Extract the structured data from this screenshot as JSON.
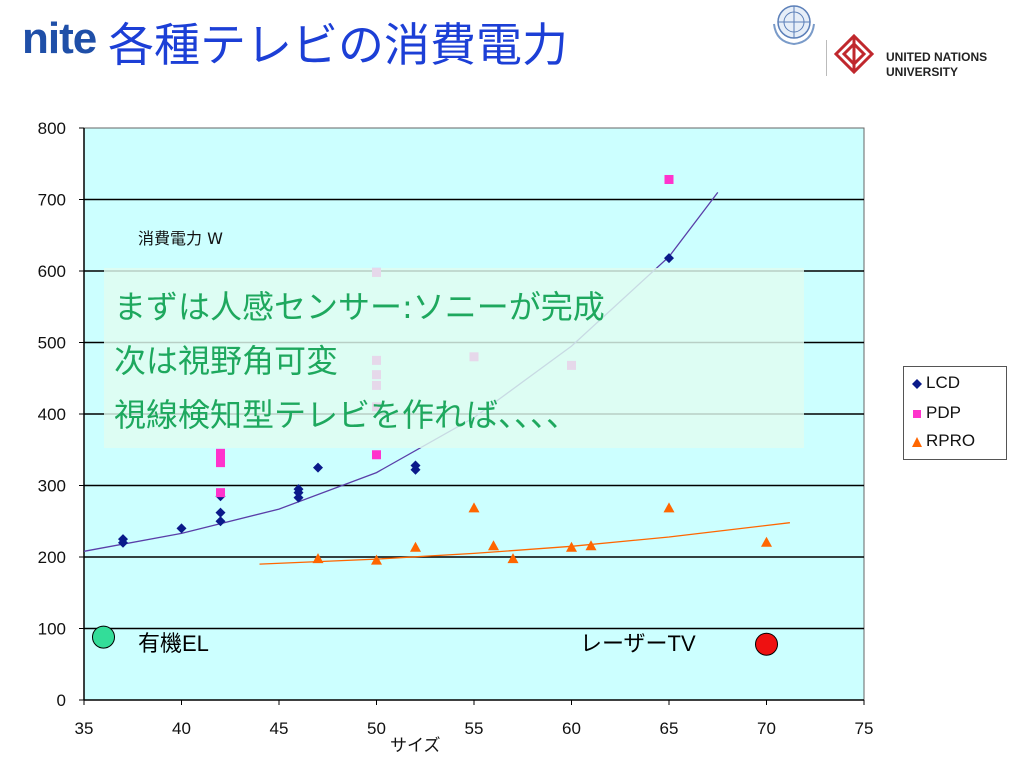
{
  "header": {
    "logo_text": "nite",
    "title": "各種テレビの消費電力",
    "un_emblem": "un-emblem-icon",
    "unu_name_line1": "UNITED NATIONS",
    "unu_name_line2": "UNIVERSITY"
  },
  "overlay": {
    "lines": [
      "まずは人感センサー:ソニーが完成",
      "次は視野角可変",
      "視線検知型テレビを作れば、、、、"
    ]
  },
  "colors": {
    "plot_bg": "#ccffff",
    "lcd": "#0a1a8a",
    "pdp": "#ff33cc",
    "rpro": "#ff6600",
    "title": "#1c3fd6",
    "overlay_text": "#1ea85e",
    "oled_marker": "#33dd99",
    "laser_marker": "#ee1111"
  },
  "chart_data": {
    "type": "scatter",
    "ylabel": "消費電力 W",
    "xlabel": "サイズ",
    "xlim": [
      35,
      75
    ],
    "ylim": [
      0,
      800
    ],
    "x_ticks": [
      35,
      40,
      45,
      50,
      55,
      60,
      65,
      70,
      75
    ],
    "y_ticks": [
      0,
      100,
      200,
      300,
      400,
      500,
      600,
      700,
      800
    ],
    "grid": "horizontal",
    "legend_position": "right",
    "series": [
      {
        "name": "LCD",
        "marker": "diamond",
        "points": [
          [
            37,
            225
          ],
          [
            37,
            220
          ],
          [
            40,
            240
          ],
          [
            42,
            285
          ],
          [
            42,
            262
          ],
          [
            42,
            250
          ],
          [
            46,
            295
          ],
          [
            46,
            290
          ],
          [
            46,
            283
          ],
          [
            47,
            325
          ],
          [
            52,
            328
          ],
          [
            52,
            322
          ],
          [
            65,
            618
          ]
        ]
      },
      {
        "name": "PDP",
        "marker": "square",
        "points": [
          [
            42,
            345
          ],
          [
            42,
            338
          ],
          [
            42,
            332
          ],
          [
            42,
            290
          ],
          [
            50,
            598
          ],
          [
            50,
            475
          ],
          [
            50,
            455
          ],
          [
            50,
            440
          ],
          [
            50,
            410
          ],
          [
            50,
            343
          ],
          [
            55,
            480
          ],
          [
            60,
            468
          ],
          [
            65,
            728
          ]
        ]
      },
      {
        "name": "RPRO",
        "marker": "triangle",
        "points": [
          [
            47,
            197
          ],
          [
            50,
            195
          ],
          [
            52,
            213
          ],
          [
            55,
            268
          ],
          [
            56,
            215
          ],
          [
            57,
            197
          ],
          [
            60,
            213
          ],
          [
            61,
            215
          ],
          [
            65,
            268
          ],
          [
            70,
            220
          ]
        ]
      }
    ],
    "trendlines": [
      {
        "series": "LCD",
        "points": [
          [
            35,
            208
          ],
          [
            40,
            233
          ],
          [
            45,
            267
          ],
          [
            50,
            318
          ],
          [
            55,
            395
          ],
          [
            60,
            495
          ],
          [
            65,
            620
          ],
          [
            67.5,
            710
          ]
        ]
      },
      {
        "series": "RPRO",
        "points": [
          [
            44,
            190
          ],
          [
            50,
            197
          ],
          [
            55,
            205
          ],
          [
            60,
            215
          ],
          [
            65,
            228
          ],
          [
            71.2,
            248
          ]
        ]
      }
    ],
    "annotations": [
      {
        "label": "有機EL",
        "x": 36,
        "y": 88
      },
      {
        "label": "レーザーTV",
        "x": 70,
        "y": 78
      }
    ]
  }
}
